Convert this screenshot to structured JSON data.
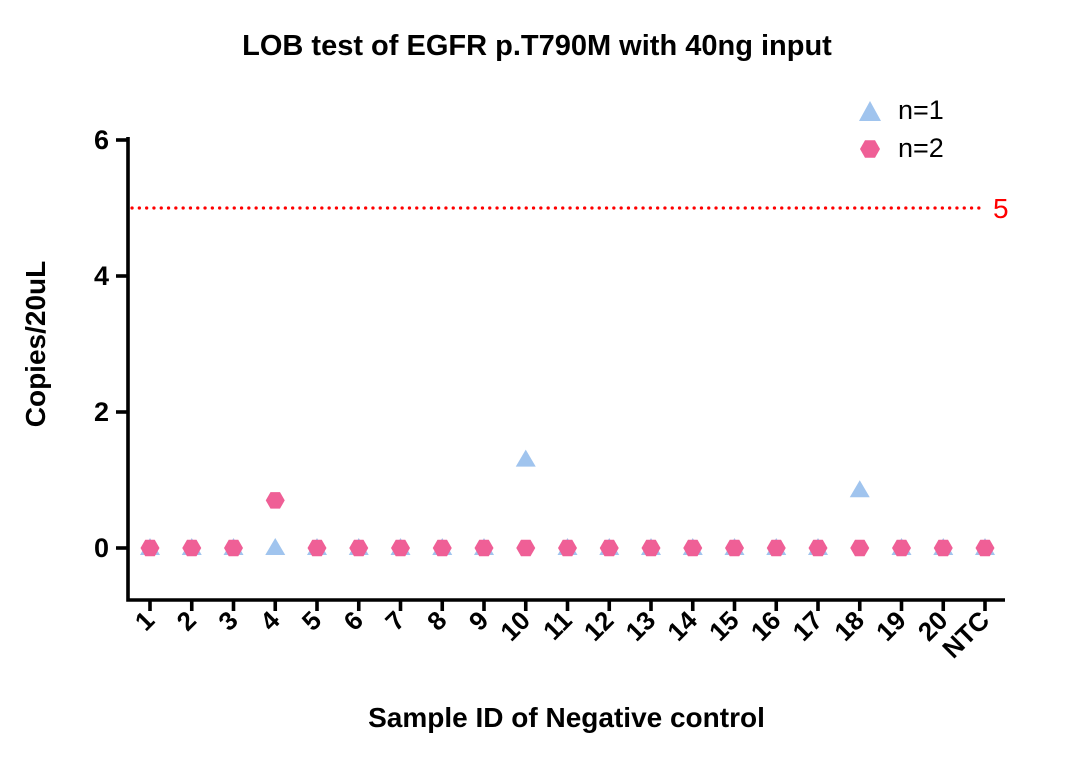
{
  "chart_data": {
    "type": "scatter",
    "title": "LOB test of EGFR p.T790M with 40ng input",
    "xlabel": "Sample ID of Negative control",
    "ylabel": "Copies/20uL",
    "ylim": [
      0,
      6
    ],
    "yticks": [
      0,
      2,
      4,
      6
    ],
    "grid": false,
    "legend_position": "top-right",
    "axis_color": "#000000",
    "categories": [
      "1",
      "2",
      "3",
      "4",
      "5",
      "6",
      "7",
      "8",
      "9",
      "10",
      "11",
      "12",
      "13",
      "14",
      "15",
      "16",
      "17",
      "18",
      "19",
      "20",
      "NTC"
    ],
    "series": [
      {
        "name": "n=1",
        "marker": "triangle",
        "color": "#A0C4EE",
        "values": [
          0,
          0,
          0,
          0,
          0,
          0,
          0,
          0,
          0,
          1.3,
          0,
          0,
          0,
          0,
          0,
          0,
          0,
          0.85,
          0,
          0,
          0
        ]
      },
      {
        "name": "n=2",
        "marker": "hexagon",
        "color": "#EF5F96",
        "values": [
          0,
          0,
          0,
          0.7,
          0,
          0,
          0,
          0,
          0,
          0,
          0,
          0,
          0,
          0,
          0,
          0,
          0,
          0,
          0,
          0,
          0
        ]
      }
    ],
    "threshold_line": {
      "value": 5,
      "label": "5",
      "color": "#FF0000",
      "style": "dotted"
    }
  }
}
